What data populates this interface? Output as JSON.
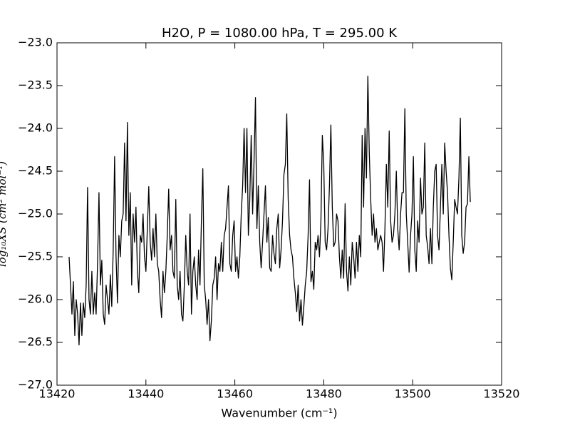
{
  "chart_data": {
    "type": "line",
    "title": "H2O, P = 1080.00 hPa, T = 295.00 K",
    "xlabel": "Wavenumber (cm⁻¹)",
    "ylabel": "log₁₀XS (cm² mol⁻¹)",
    "xlim": [
      13420,
      13520
    ],
    "ylim": [
      -27,
      -23
    ],
    "xticks": [
      13420,
      13440,
      13460,
      13480,
      13500,
      13520
    ],
    "yticks": [
      {
        "value": -27,
        "label": "−27.0"
      },
      {
        "value": -26.5,
        "label": "−26.5"
      },
      {
        "value": -26,
        "label": "−26.0"
      },
      {
        "value": -25.5,
        "label": "−25.5"
      },
      {
        "value": -25,
        "label": "−25.0"
      },
      {
        "value": -24.5,
        "label": "−24.5"
      },
      {
        "value": -24,
        "label": "−24.0"
      },
      {
        "value": -23.5,
        "label": "−23.5"
      },
      {
        "value": -23,
        "label": "−23.0"
      }
    ],
    "grid": false,
    "x": [
      13422.72,
      13423.04,
      13423.36,
      13423.68,
      13424,
      13424.32,
      13424.64,
      13424.96,
      13425.28,
      13425.6,
      13425.92,
      13426.24,
      13426.56,
      13426.88,
      13427.2,
      13427.52,
      13427.84,
      13428.16,
      13428.48,
      13428.8,
      13429.12,
      13429.44,
      13429.76,
      13430.08,
      13430.4,
      13430.72,
      13431.04,
      13431.36,
      13431.68,
      13432,
      13432.32,
      13432.64,
      13432.96,
      13433.28,
      13433.6,
      13433.92,
      13434.24,
      13434.56,
      13434.88,
      13435.2,
      13435.52,
      13435.84,
      13436.16,
      13436.48,
      13436.8,
      13437.12,
      13437.44,
      13437.76,
      13438.08,
      13438.4,
      13438.72,
      13439.04,
      13439.36,
      13439.68,
      13440,
      13440.32,
      13440.64,
      13440.96,
      13441.28,
      13441.6,
      13441.92,
      13442.24,
      13442.56,
      13442.88,
      13443.2,
      13443.52,
      13443.84,
      13444.16,
      13444.48,
      13444.8,
      13445.12,
      13445.44,
      13445.76,
      13446.08,
      13446.4,
      13446.72,
      13447.04,
      13447.36,
      13447.68,
      13448,
      13448.32,
      13448.64,
      13448.96,
      13449.28,
      13449.6,
      13449.92,
      13450.24,
      13450.56,
      13450.88,
      13451.2,
      13451.52,
      13451.84,
      13452.16,
      13452.48,
      13452.8,
      13453.12,
      13453.44,
      13453.76,
      13454.08,
      13454.4,
      13454.72,
      13455.04,
      13455.36,
      13455.68,
      13456,
      13456.32,
      13456.64,
      13456.96,
      13457.28,
      13457.6,
      13457.92,
      13458.24,
      13458.56,
      13458.88,
      13459.2,
      13459.52,
      13459.84,
      13460.16,
      13460.48,
      13460.8,
      13461.12,
      13461.44,
      13461.76,
      13462.08,
      13462.4,
      13462.72,
      13463.04,
      13463.36,
      13463.68,
      13464,
      13464.32,
      13464.64,
      13464.96,
      13465.28,
      13465.6,
      13465.92,
      13466.24,
      13466.56,
      13466.88,
      13467.2,
      13467.52,
      13467.84,
      13468.16,
      13468.48,
      13468.8,
      13469.12,
      13469.44,
      13469.76,
      13470.08,
      13470.4,
      13470.72,
      13471.04,
      13471.36,
      13471.68,
      13472,
      13472.32,
      13472.64,
      13472.96,
      13473.28,
      13473.6,
      13473.92,
      13474.24,
      13474.56,
      13474.88,
      13475.2,
      13475.52,
      13475.84,
      13476.16,
      13476.48,
      13476.8,
      13477.12,
      13477.44,
      13477.76,
      13478.08,
      13478.4,
      13478.72,
      13479.04,
      13479.36,
      13479.68,
      13480,
      13480.32,
      13480.64,
      13480.96,
      13481.28,
      13481.6,
      13481.92,
      13482.24,
      13482.56,
      13482.88,
      13483.2,
      13483.52,
      13483.84,
      13484.16,
      13484.48,
      13484.8,
      13485.12,
      13485.44,
      13485.76,
      13486.08,
      13486.4,
      13486.72,
      13487.04,
      13487.36,
      13487.68,
      13488,
      13488.32,
      13488.64,
      13488.96,
      13489.28,
      13489.6,
      13489.92,
      13490.24,
      13490.56,
      13490.88,
      13491.2,
      13491.52,
      13491.84,
      13492.16,
      13492.48,
      13492.8,
      13493.12,
      13493.44,
      13493.76,
      13494.08,
      13494.4,
      13494.72,
      13495.04,
      13495.36,
      13495.68,
      13496,
      13496.32,
      13496.64,
      13496.96,
      13497.28,
      13497.6,
      13497.92,
      13498.24,
      13498.56,
      13498.88,
      13499.2,
      13499.52,
      13499.84,
      13500.16,
      13500.48,
      13500.8,
      13501.12,
      13501.44,
      13501.76,
      13502.08,
      13502.4,
      13502.72,
      13503.04,
      13503.36,
      13503.68,
      13504,
      13504.32,
      13504.64,
      13504.96,
      13505.28,
      13505.6,
      13505.92,
      13506.24,
      13506.56,
      13506.88,
      13507.2,
      13507.52,
      13507.84,
      13508.16,
      13508.48,
      13508.8,
      13509.12,
      13509.44,
      13509.76,
      13510.08,
      13510.4,
      13510.72,
      13511.04,
      13511.36,
      13511.68,
      13512,
      13512.32,
      13512.64,
      13512.96
    ],
    "series": [
      {
        "color": "#000000",
        "values": [
          -25.5,
          -25.83,
          -26.17,
          -25.79,
          -26.42,
          -26.0,
          -26.17,
          -26.53,
          -26.04,
          -26.42,
          -26.04,
          -26.21,
          -25.83,
          -24.69,
          -26.0,
          -26.17,
          -25.67,
          -26.17,
          -25.92,
          -26.17,
          -25.58,
          -24.75,
          -25.83,
          -25.54,
          -26.17,
          -26.29,
          -25.83,
          -26.0,
          -26.17,
          -25.71,
          -26.08,
          -25.42,
          -24.33,
          -25.5,
          -26.04,
          -25.25,
          -25.5,
          -25.08,
          -25.0,
          -24.17,
          -25.08,
          -23.93,
          -25.25,
          -24.75,
          -25.83,
          -25.0,
          -25.33,
          -24.92,
          -25.67,
          -25.92,
          -25.25,
          -25.33,
          -25.0,
          -25.5,
          -25.67,
          -25.17,
          -24.68,
          -25.33,
          -25.54,
          -25.17,
          -25.5,
          -25.0,
          -25.58,
          -25.67,
          -26.0,
          -26.21,
          -25.67,
          -25.92,
          -25.67,
          -25.25,
          -24.71,
          -25.42,
          -25.25,
          -25.67,
          -25.75,
          -24.83,
          -25.83,
          -26.0,
          -25.67,
          -26.17,
          -26.25,
          -25.83,
          -25.25,
          -25.67,
          -25.83,
          -25.0,
          -26.17,
          -25.67,
          -25.5,
          -25.83,
          -26.0,
          -25.42,
          -25.83,
          -25.08,
          -24.47,
          -25.83,
          -26.0,
          -26.29,
          -26.0,
          -26.48,
          -26.25,
          -25.83,
          -25.75,
          -25.5,
          -26.0,
          -25.58,
          -25.67,
          -25.33,
          -25.67,
          -25.25,
          -25.17,
          -24.92,
          -24.67,
          -25.58,
          -25.67,
          -25.25,
          -25.08,
          -25.67,
          -25.5,
          -25.75,
          -25.5,
          -25.0,
          -24.67,
          -24.0,
          -24.75,
          -24.0,
          -25.25,
          -24.83,
          -24.08,
          -25.0,
          -24.38,
          -23.64,
          -25.17,
          -24.67,
          -25.33,
          -25.63,
          -25.33,
          -25.0,
          -24.67,
          -25.33,
          -25.04,
          -25.63,
          -25.67,
          -25.25,
          -25.46,
          -25.58,
          -25.17,
          -25.0,
          -25.63,
          -25.42,
          -25.08,
          -24.54,
          -24.42,
          -23.83,
          -24.83,
          -25.25,
          -25.42,
          -25.5,
          -25.75,
          -25.92,
          -26.14,
          -25.83,
          -26.25,
          -26.0,
          -26.3,
          -26.08,
          -25.83,
          -25.67,
          -25.25,
          -24.6,
          -25.79,
          -25.67,
          -25.88,
          -25.33,
          -25.42,
          -25.25,
          -25.5,
          -25.08,
          -24.08,
          -24.42,
          -25.33,
          -25.42,
          -25.17,
          -24.67,
          -23.96,
          -24.92,
          -25.38,
          -25.33,
          -25.0,
          -25.08,
          -25.5,
          -25.75,
          -25.42,
          -25.75,
          -24.88,
          -25.67,
          -25.9,
          -25.5,
          -25.83,
          -25.33,
          -25.5,
          -25.75,
          -25.33,
          -25.67,
          -25.25,
          -25.5,
          -24.08,
          -24.92,
          -24.0,
          -24.58,
          -23.39,
          -24.29,
          -24.83,
          -25.25,
          -25.0,
          -25.33,
          -25.17,
          -25.42,
          -25.33,
          -25.25,
          -25.33,
          -25.67,
          -25.17,
          -24.42,
          -24.92,
          -24.03,
          -25.08,
          -25.33,
          -25.25,
          -25.0,
          -24.5,
          -25.17,
          -25.42,
          -25.0,
          -24.75,
          -24.75,
          -23.77,
          -25.0,
          -25.33,
          -25.68,
          -25.25,
          -25.0,
          -24.33,
          -25.42,
          -25.67,
          -25.08,
          -25.33,
          -24.58,
          -25.0,
          -24.92,
          -24.17,
          -25.25,
          -25.38,
          -25.58,
          -25.17,
          -25.58,
          -24.92,
          -24.5,
          -24.42,
          -25.25,
          -25.42,
          -24.92,
          -24.42,
          -25.0,
          -24.17,
          -24.5,
          -24.75,
          -25.25,
          -25.63,
          -25.77,
          -25.33,
          -24.83,
          -24.92,
          -25.0,
          -24.58,
          -23.88,
          -25.25,
          -25.46,
          -25.33,
          -24.92,
          -24.88,
          -24.33,
          -24.86
        ]
      }
    ]
  }
}
